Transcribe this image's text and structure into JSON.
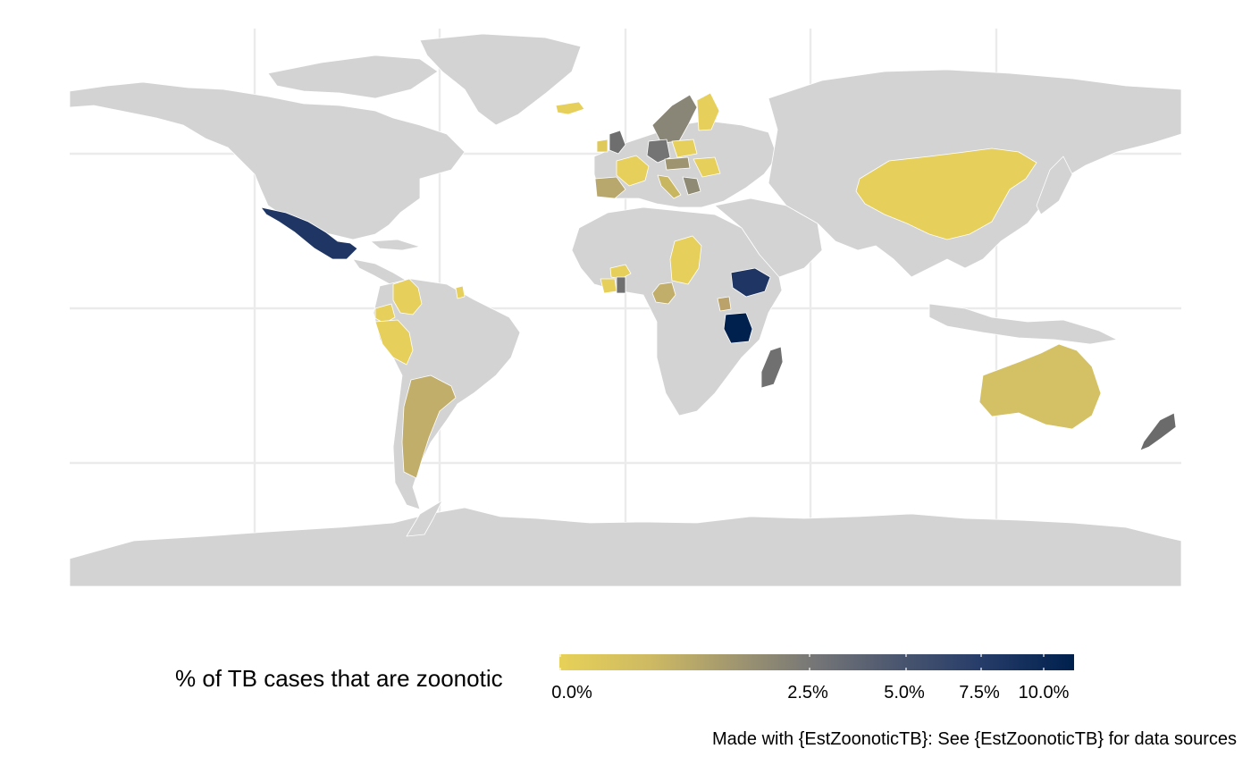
{
  "map": {
    "projection": "equirectangular",
    "background_land_color": "#d3d3d3",
    "border_color": "#ffffff",
    "grid_color": "#ebebeb",
    "legend": {
      "title": "% of TB cases that are zoonotic",
      "scale": "continuous",
      "placement": "bottom",
      "color_low": "#e7d158",
      "color_mid": "#8a8677",
      "color_high": "#00204d",
      "ticks": [
        "0.0%",
        "2.5%",
        "5.0%",
        "7.5%",
        "10.0%"
      ]
    },
    "caption": "Made with {EstZoonoticTB}: See {EstZoonoticTB} for data sources",
    "highlighted_regions": [
      {
        "name": "mexico",
        "color": "#1f3664"
      },
      {
        "name": "colombia",
        "color": "#e6cf5a"
      },
      {
        "name": "ecuador",
        "color": "#e6cf5a"
      },
      {
        "name": "peru",
        "color": "#e6cf5a"
      },
      {
        "name": "suriname",
        "color": "#e6cf5a"
      },
      {
        "name": "argentina",
        "color": "#c1ae6b"
      },
      {
        "name": "chad",
        "color": "#e6cf5a"
      },
      {
        "name": "burkina-faso",
        "color": "#e6cf5a"
      },
      {
        "name": "cote-divoire",
        "color": "#e6cf5a"
      },
      {
        "name": "ghana",
        "color": "#707070"
      },
      {
        "name": "cameroon",
        "color": "#c1ae6b"
      },
      {
        "name": "ethiopia",
        "color": "#1f3664"
      },
      {
        "name": "uganda",
        "color": "#bba26a"
      },
      {
        "name": "tanzania",
        "color": "#00204d"
      },
      {
        "name": "madagascar",
        "color": "#707070"
      },
      {
        "name": "china",
        "color": "#e6cf5a"
      },
      {
        "name": "australia",
        "color": "#d4c166"
      },
      {
        "name": "new-zealand",
        "color": "#6b6b6b"
      },
      {
        "name": "iceland",
        "color": "#e6cf5a"
      },
      {
        "name": "scandinavia",
        "color": "#8a8677"
      },
      {
        "name": "finland",
        "color": "#e6cf5a"
      },
      {
        "name": "united-kingdom",
        "color": "#6e6e6e"
      },
      {
        "name": "ireland",
        "color": "#e0c95c"
      },
      {
        "name": "france",
        "color": "#e6cf5a"
      },
      {
        "name": "iberia",
        "color": "#b8a86e"
      },
      {
        "name": "germany",
        "color": "#747474"
      },
      {
        "name": "poland",
        "color": "#e6cf5a"
      },
      {
        "name": "central-europe",
        "color": "#9e9570"
      },
      {
        "name": "eastern-europe",
        "color": "#e6cf5a"
      },
      {
        "name": "italy",
        "color": "#c9b660"
      },
      {
        "name": "balkans",
        "color": "#8f8a74"
      }
    ]
  }
}
